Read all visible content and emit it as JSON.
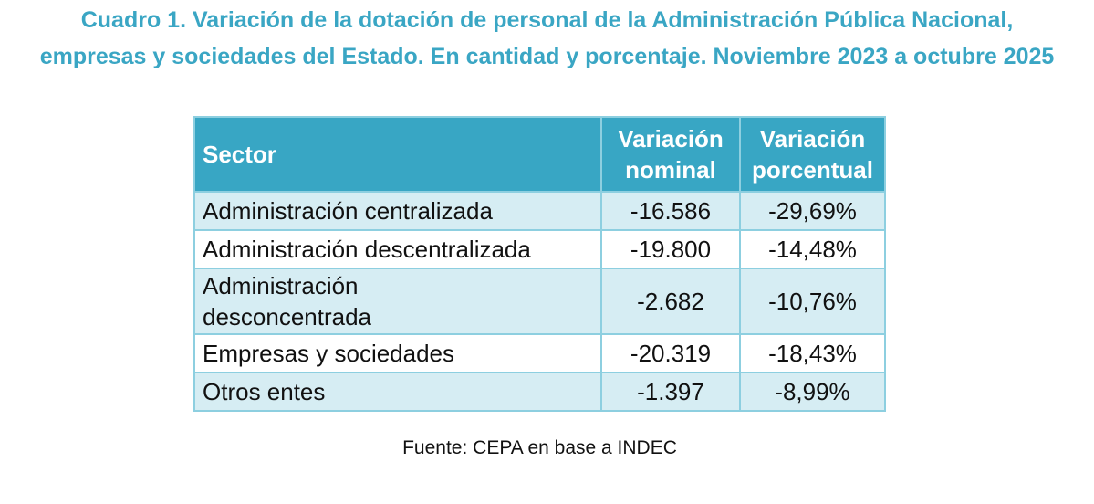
{
  "title": "Cuadro 1. Variación de la dotación de personal de la Administración Pública Nacional, empresas y sociedades del Estado. En cantidad y porcentaje. Noviembre 2023 a octubre 2025",
  "table": {
    "headers": [
      "Sector",
      "Variación nominal",
      "Variación porcentual"
    ],
    "rows": [
      {
        "sector": "Administración centralizada",
        "nominal": "-16.586",
        "pct": "-29,69%"
      },
      {
        "sector": "Administración descentralizada",
        "nominal": "-19.800",
        "pct": "-14,48%"
      },
      {
        "sector": "Administración desconcentrada",
        "nominal": "-2.682",
        "pct": "-10,76%"
      },
      {
        "sector": "Empresas y sociedades",
        "nominal": "-20.319",
        "pct": "-18,43%"
      },
      {
        "sector": "Otros entes",
        "nominal": "-1.397",
        "pct": "-8,99%"
      }
    ]
  },
  "source": "Fuente: CEPA en base a INDEC"
}
